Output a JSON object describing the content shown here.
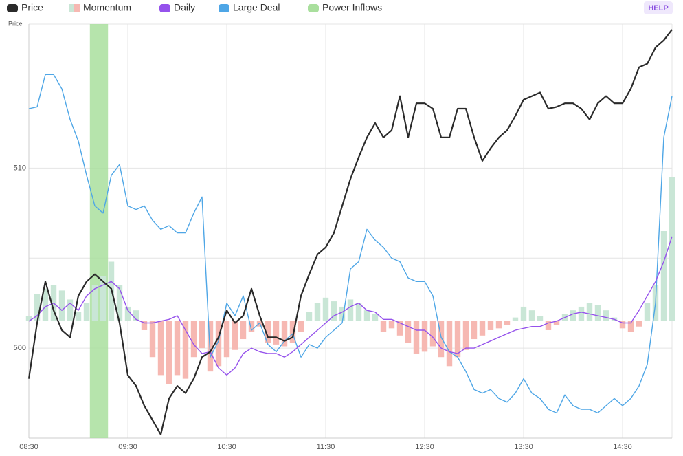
{
  "chart_data": {
    "type": "line",
    "ylabel": "Price",
    "help": "HELP",
    "xlim": [
      "08:30",
      "15:00"
    ],
    "xticks": [
      "08:30",
      "09:30",
      "10:30",
      "11:30",
      "12:30",
      "13:30",
      "14:30"
    ],
    "ylim": [
      495,
      518
    ],
    "yticks": [
      500,
      510
    ],
    "minor_yticks": [
      505,
      515
    ],
    "grid": true,
    "legend": "top-left",
    "x": [
      "08:30",
      "08:35",
      "08:40",
      "08:45",
      "08:50",
      "08:55",
      "09:00",
      "09:05",
      "09:10",
      "09:15",
      "09:20",
      "09:25",
      "09:30",
      "09:35",
      "09:40",
      "09:45",
      "09:50",
      "09:55",
      "10:00",
      "10:05",
      "10:10",
      "10:15",
      "10:20",
      "10:25",
      "10:30",
      "10:35",
      "10:40",
      "10:45",
      "10:50",
      "10:55",
      "11:00",
      "11:05",
      "11:10",
      "11:15",
      "11:20",
      "11:25",
      "11:30",
      "11:35",
      "11:40",
      "11:45",
      "11:50",
      "11:55",
      "12:00",
      "12:05",
      "12:10",
      "12:15",
      "12:20",
      "12:25",
      "12:30",
      "12:35",
      "12:40",
      "12:45",
      "12:50",
      "12:55",
      "13:00",
      "13:05",
      "13:10",
      "13:15",
      "13:20",
      "13:25",
      "13:30",
      "13:35",
      "13:40",
      "13:45",
      "13:50",
      "13:55",
      "14:00",
      "14:05",
      "14:10",
      "14:15",
      "14:20",
      "14:25",
      "14:30",
      "14:35",
      "14:40",
      "14:45",
      "14:50",
      "14:55",
      "15:00"
    ],
    "series": [
      {
        "name": "Price",
        "type": "line",
        "color": "#2a2a2a",
        "values": [
          498.3,
          501.4,
          503.7,
          502.1,
          501.0,
          500.6,
          502.9,
          503.7,
          504.1,
          503.7,
          503.3,
          501.4,
          498.5,
          497.9,
          496.8,
          496.0,
          495.2,
          497.2,
          497.9,
          497.5,
          498.3,
          499.5,
          499.8,
          500.6,
          502.1,
          501.4,
          501.8,
          503.3,
          501.8,
          500.6,
          500.6,
          500.4,
          500.6,
          502.9,
          504.1,
          505.2,
          505.6,
          506.4,
          507.9,
          509.4,
          510.6,
          511.7,
          512.5,
          511.7,
          512.1,
          514.0,
          511.7,
          513.6,
          513.6,
          513.3,
          511.7,
          511.7,
          513.3,
          513.3,
          511.7,
          510.4,
          511.1,
          511.7,
          512.1,
          512.9,
          513.8,
          514.0,
          514.2,
          513.3,
          513.4,
          513.6,
          513.6,
          513.3,
          512.7,
          513.6,
          514.0,
          513.6,
          513.6,
          514.4,
          515.6,
          515.8,
          516.7,
          517.1,
          517.7
        ]
      },
      {
        "name": "Momentum",
        "type": "histogram",
        "baseline": 501.5,
        "colors": {
          "positive": "#c9e6d6",
          "negative": "#f6b8b2"
        },
        "values": [
          0.3,
          1.5,
          1.8,
          2.0,
          1.7,
          1.2,
          0.5,
          1.0,
          2.0,
          2.5,
          3.3,
          2.0,
          0.8,
          0.6,
          -0.5,
          -2.0,
          -3.0,
          -3.5,
          -3.0,
          -3.2,
          -2.0,
          -1.5,
          -2.8,
          -2.5,
          -2.0,
          -1.6,
          -1.0,
          -0.6,
          -0.3,
          -1.2,
          -1.3,
          -1.4,
          -1.2,
          -0.6,
          0.5,
          1.0,
          1.3,
          1.1,
          0.8,
          1.2,
          1.0,
          0.6,
          0.4,
          -0.6,
          -0.4,
          -0.8,
          -1.2,
          -1.8,
          -1.7,
          -1.4,
          -2.0,
          -2.5,
          -2.0,
          -1.6,
          -1.0,
          -0.8,
          -0.5,
          -0.4,
          -0.2,
          0.2,
          0.8,
          0.6,
          0.3,
          -0.5,
          -0.2,
          0.4,
          0.6,
          0.8,
          1.0,
          0.9,
          0.6,
          0.2,
          -0.4,
          -0.6,
          -0.3,
          1.0,
          2.0,
          5.0,
          8.0
        ]
      },
      {
        "name": "Daily",
        "type": "line",
        "color": "#9552ec",
        "values": [
          501.5,
          501.8,
          502.3,
          502.5,
          502.1,
          502.5,
          502.1,
          502.9,
          503.3,
          503.5,
          503.7,
          503.3,
          502.1,
          501.6,
          501.4,
          501.4,
          501.5,
          501.6,
          501.8,
          501.0,
          500.2,
          499.7,
          499.8,
          498.9,
          498.5,
          498.9,
          499.7,
          500.0,
          499.8,
          499.7,
          499.7,
          499.5,
          499.8,
          500.2,
          500.6,
          501.0,
          501.4,
          501.8,
          502.0,
          502.3,
          502.5,
          502.1,
          502.0,
          501.6,
          501.6,
          501.4,
          501.2,
          501.0,
          501.0,
          500.6,
          500.0,
          499.8,
          499.7,
          500.0,
          500.0,
          500.2,
          500.4,
          500.6,
          500.8,
          501.0,
          501.1,
          501.2,
          501.2,
          501.4,
          501.5,
          501.7,
          501.9,
          502.0,
          501.9,
          501.8,
          501.7,
          501.6,
          501.4,
          501.4,
          502.1,
          502.9,
          503.7,
          504.8,
          506.2
        ]
      },
      {
        "name": "Large Deal",
        "type": "line",
        "color": "#4ea6e6",
        "values": [
          513.3,
          513.4,
          515.2,
          515.2,
          514.4,
          512.7,
          511.5,
          509.6,
          507.9,
          507.5,
          509.6,
          510.2,
          507.9,
          507.7,
          507.9,
          507.1,
          506.6,
          506.8,
          506.4,
          506.4,
          507.5,
          508.4,
          499.5,
          500.4,
          502.5,
          501.8,
          502.9,
          501.0,
          501.4,
          500.2,
          499.8,
          500.4,
          500.8,
          499.5,
          500.2,
          500.0,
          500.6,
          501.0,
          501.4,
          504.4,
          504.8,
          506.6,
          506.0,
          505.6,
          505.0,
          504.8,
          503.9,
          503.7,
          503.7,
          502.9,
          500.6,
          499.8,
          499.5,
          498.7,
          497.7,
          497.5,
          497.7,
          497.2,
          497.0,
          497.5,
          498.3,
          497.5,
          497.2,
          496.6,
          496.4,
          497.4,
          496.8,
          496.6,
          496.6,
          496.4,
          496.8,
          497.2,
          496.8,
          497.2,
          497.9,
          499.1,
          502.5,
          511.7,
          514.0
        ]
      }
    ],
    "band": {
      "name": "Power Inflows",
      "color": "#a9df9d",
      "x": [
        "09:07",
        "09:18"
      ]
    }
  }
}
